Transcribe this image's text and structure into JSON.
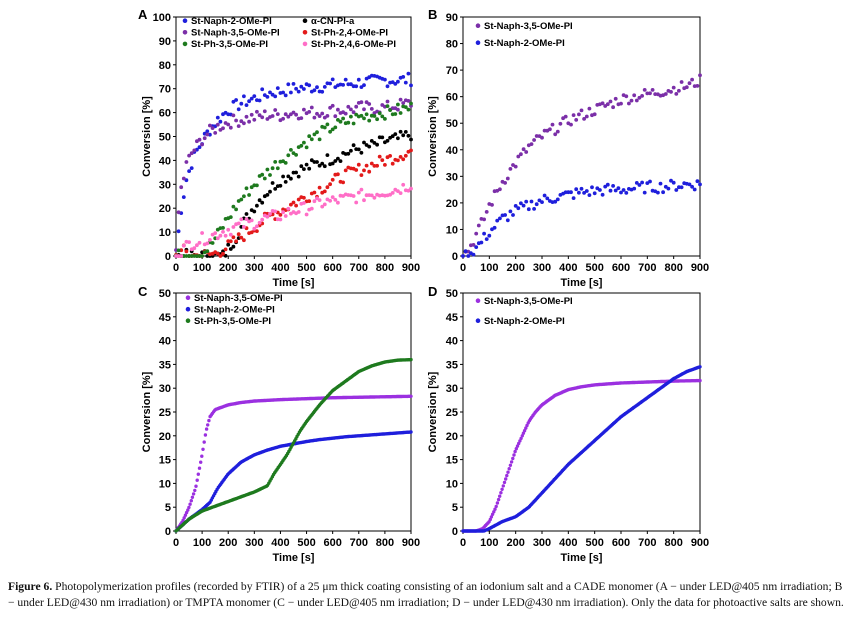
{
  "caption": {
    "label": "Figure 6.",
    "text": " Photopolymerization profiles (recorded by FTIR) of a 25 μm thick coating consisting of an iodonium salt and a CADE monomer (A − under LED@405 nm irradiation; B − under LED@430 nm irradiation) or TMPTA monomer (C − under LED@405 nm irradiation; D − under LED@430 nm irradiation). Only the data for photoactive salts are shown."
  },
  "chart_data": [
    {
      "panel": "A",
      "type": "scatter",
      "xlabel": "Time [s]",
      "ylabel": "Conversion [%]",
      "xlim": [
        0,
        900
      ],
      "ylim": [
        0,
        100
      ],
      "xticks": [
        0,
        100,
        200,
        300,
        400,
        500,
        600,
        700,
        800,
        900
      ],
      "yticks": [
        0,
        10,
        20,
        30,
        40,
        50,
        60,
        70,
        80,
        90,
        100
      ],
      "legend": "top-left, two columns",
      "series": [
        {
          "name": "St-Naph-2-OMe-PI",
          "color": "#1f1fdc",
          "x": [
            0,
            20,
            40,
            60,
            80,
            100,
            130,
            160,
            200,
            250,
            300,
            350,
            400,
            450,
            500,
            550,
            600,
            650,
            700,
            750,
            800,
            850,
            900
          ],
          "y": [
            0,
            20,
            32,
            39,
            44,
            48,
            53,
            57,
            61,
            64,
            66,
            68,
            69,
            70,
            70.5,
            71,
            71.5,
            72,
            72.5,
            73,
            73.5,
            73.5,
            74
          ]
        },
        {
          "name": "α-CN-PI-a",
          "color": "#000000",
          "x": [
            0,
            100,
            150,
            180,
            200,
            230,
            260,
            300,
            350,
            400,
            450,
            500,
            550,
            600,
            650,
            700,
            750,
            800,
            850,
            900
          ],
          "y": [
            0,
            0,
            0,
            0,
            3,
            8,
            14,
            21,
            27,
            32,
            35,
            37,
            39,
            41,
            43,
            45,
            46,
            48,
            49,
            51
          ]
        },
        {
          "name": "St-Naph-3,5-OMe-PI",
          "color": "#7b2fa8",
          "x": [
            0,
            10,
            20,
            40,
            60,
            80,
            100,
            130,
            160,
            200,
            250,
            300,
            350,
            400,
            450,
            500,
            550,
            600,
            650,
            700,
            750,
            800,
            850,
            900
          ],
          "y": [
            0,
            18,
            28,
            38,
            43,
            46,
            49,
            52,
            54,
            56,
            57,
            58,
            59,
            59,
            60,
            60,
            60,
            61,
            61,
            62,
            62,
            62,
            63,
            64
          ]
        },
        {
          "name": "St-Ph-2,4-OMe-PI",
          "color": "#e31a1a",
          "x": [
            0,
            30,
            60,
            100,
            150,
            200,
            250,
            300,
            350,
            400,
            450,
            500,
            550,
            600,
            650,
            700,
            750,
            800,
            850,
            900
          ],
          "y": [
            0,
            2,
            0,
            0,
            1,
            4,
            8,
            12,
            16,
            19,
            22,
            25,
            28,
            31,
            34,
            36,
            38,
            40,
            42,
            44
          ]
        },
        {
          "name": "St-Ph-3,5-OMe-PI",
          "color": "#1e7a1e",
          "x": [
            0,
            50,
            100,
            130,
            160,
            200,
            250,
            300,
            350,
            400,
            450,
            500,
            550,
            600,
            650,
            700,
            750,
            800,
            850,
            900
          ],
          "y": [
            0,
            0,
            1,
            4,
            9,
            16,
            24,
            30,
            35,
            40,
            44,
            48,
            51,
            54,
            56,
            58,
            59,
            60,
            61,
            62
          ]
        },
        {
          "name": "St-Ph-2,4,6-OMe-PI",
          "color": "#ff6ec7",
          "x": [
            0,
            50,
            100,
            150,
            200,
            250,
            300,
            350,
            400,
            450,
            500,
            550,
            600,
            650,
            700,
            750,
            800,
            850,
            900
          ],
          "y": [
            0,
            5,
            7,
            9,
            11,
            13,
            14,
            16,
            17,
            19,
            20,
            22,
            23,
            24,
            25,
            26,
            27,
            28,
            30
          ]
        }
      ]
    },
    {
      "panel": "B",
      "type": "scatter",
      "xlabel": "Time [s]",
      "ylabel": "Conversion [%]",
      "xlim": [
        0,
        900
      ],
      "ylim": [
        0,
        90
      ],
      "xticks": [
        0,
        100,
        200,
        300,
        400,
        500,
        600,
        700,
        800,
        900
      ],
      "yticks": [
        0,
        10,
        20,
        30,
        40,
        50,
        60,
        70,
        80,
        90
      ],
      "legend": "top-left",
      "series": [
        {
          "name": "St-Naph-3,5-OMe-PI",
          "color": "#7b2fa8",
          "x": [
            0,
            25,
            50,
            75,
            100,
            150,
            200,
            250,
            300,
            350,
            400,
            450,
            500,
            550,
            600,
            650,
            700,
            750,
            800,
            850,
            900
          ],
          "y": [
            0,
            3,
            8,
            13,
            19,
            28,
            35,
            41,
            45,
            48,
            51,
            53,
            55,
            57,
            59,
            60,
            61,
            62,
            63,
            64,
            66
          ]
        },
        {
          "name": "St-Naph-2-OMe-PI",
          "color": "#1f1fdc",
          "x": [
            0,
            25,
            50,
            75,
            100,
            150,
            200,
            250,
            300,
            350,
            400,
            450,
            500,
            550,
            600,
            650,
            700,
            750,
            800,
            850,
            900
          ],
          "y": [
            0,
            1,
            3,
            6,
            9,
            14,
            17,
            19,
            21,
            22,
            23,
            24,
            24.5,
            25,
            25,
            25.5,
            26,
            26,
            26.5,
            27,
            27
          ]
        }
      ]
    },
    {
      "panel": "C",
      "type": "scatter",
      "xlabel": "Time [s]",
      "ylabel": "Conversion [%]",
      "xlim": [
        0,
        900
      ],
      "ylim": [
        0,
        50
      ],
      "xticks": [
        0,
        100,
        200,
        300,
        400,
        500,
        600,
        700,
        800,
        900
      ],
      "yticks": [
        0,
        5,
        10,
        15,
        20,
        25,
        30,
        35,
        40,
        45,
        50
      ],
      "legend": "top-left",
      "series": [
        {
          "name": "St-Naph-3,5-OMe-PI",
          "color": "#9b30e0",
          "x": [
            0,
            25,
            50,
            75,
            100,
            115,
            130,
            150,
            175,
            200,
            250,
            300,
            400,
            500,
            600,
            700,
            800,
            900
          ],
          "y": [
            0,
            2,
            5,
            9,
            16,
            21,
            24,
            25.5,
            26,
            26.5,
            27,
            27.3,
            27.6,
            27.8,
            28,
            28.1,
            28.2,
            28.3
          ]
        },
        {
          "name": "St-Naph-2-OMe-PI",
          "color": "#1f1fdc",
          "x": [
            0,
            50,
            100,
            130,
            160,
            200,
            250,
            300,
            350,
            400,
            450,
            500,
            550,
            600,
            650,
            700,
            750,
            800,
            850,
            900
          ],
          "y": [
            0,
            2.5,
            4.5,
            6,
            9,
            12,
            14.5,
            16,
            17,
            17.8,
            18.3,
            18.8,
            19.2,
            19.5,
            19.8,
            20,
            20.2,
            20.4,
            20.6,
            20.8
          ]
        },
        {
          "name": "St-Ph-3,5-OMe-PI",
          "color": "#1e7a1e",
          "x": [
            0,
            50,
            100,
            150,
            200,
            250,
            300,
            350,
            375,
            400,
            425,
            450,
            475,
            500,
            550,
            600,
            650,
            700,
            750,
            800,
            850,
            900
          ],
          "y": [
            0,
            2.5,
            4.2,
            5.2,
            6.2,
            7.2,
            8.2,
            9.5,
            12,
            14,
            16,
            18.5,
            21,
            23,
            26.5,
            29.5,
            31.5,
            33.5,
            34.7,
            35.5,
            35.9,
            36
          ]
        }
      ]
    },
    {
      "panel": "D",
      "type": "scatter",
      "xlabel": "Time [s]",
      "ylabel": "Conversion [%]",
      "xlim": [
        0,
        900
      ],
      "ylim": [
        0,
        50
      ],
      "xticks": [
        0,
        100,
        200,
        300,
        400,
        500,
        600,
        700,
        800,
        900
      ],
      "yticks": [
        0,
        5,
        10,
        15,
        20,
        25,
        30,
        35,
        40,
        45,
        50
      ],
      "legend": "top-left",
      "series": [
        {
          "name": "St-Naph-3,5-OMe-PI",
          "color": "#9b30e0",
          "x": [
            0,
            50,
            75,
            100,
            125,
            150,
            175,
            200,
            225,
            250,
            275,
            300,
            350,
            400,
            450,
            500,
            600,
            700,
            800,
            900
          ],
          "y": [
            0,
            0,
            0.5,
            2,
            5,
            9,
            13,
            17,
            20,
            23,
            25,
            26.5,
            28.5,
            29.7,
            30.3,
            30.7,
            31.1,
            31.3,
            31.5,
            31.6
          ]
        },
        {
          "name": "St-Naph-2-OMe-PI",
          "color": "#1f1fdc",
          "x": [
            0,
            50,
            80,
            100,
            150,
            200,
            250,
            300,
            350,
            400,
            450,
            500,
            550,
            600,
            650,
            700,
            750,
            800,
            850,
            900
          ],
          "y": [
            0,
            0,
            0,
            0.5,
            2,
            3,
            5,
            8,
            11,
            14,
            16.5,
            19,
            21.5,
            24,
            26,
            28,
            30,
            32,
            33.5,
            34.5
          ]
        }
      ]
    }
  ]
}
